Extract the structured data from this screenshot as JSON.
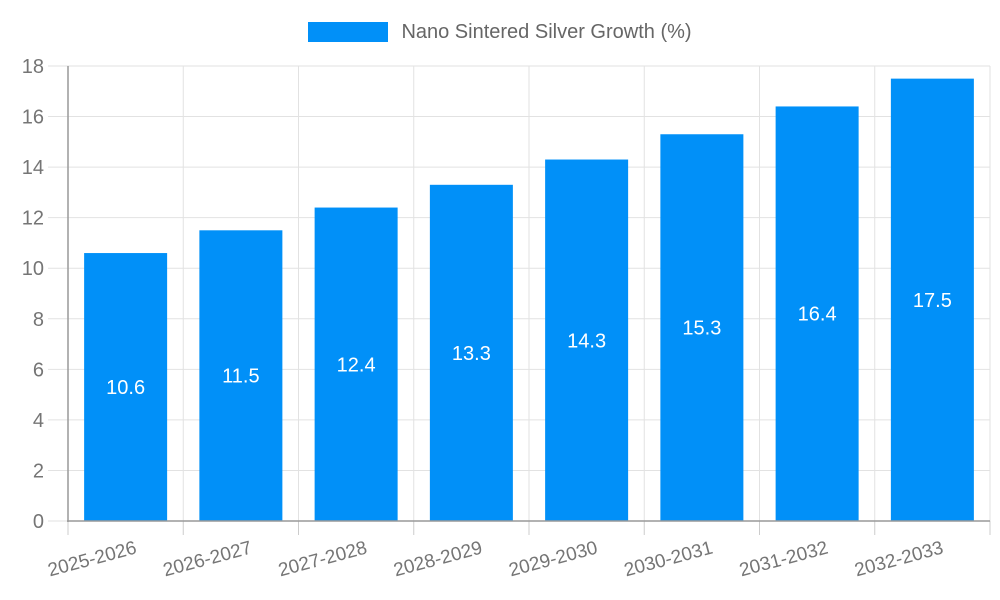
{
  "legend": {
    "label": "Nano Sintered Silver Growth (%)"
  },
  "chart_data": {
    "type": "bar",
    "categories": [
      "2025-2026",
      "2026-2027",
      "2027-2028",
      "2028-2029",
      "2029-2030",
      "2030-2031",
      "2031-2032",
      "2032-2033"
    ],
    "series": [
      {
        "name": "Nano Sintered Silver Growth (%)",
        "values": [
          10.6,
          11.5,
          12.4,
          13.3,
          14.3,
          15.3,
          16.4,
          17.5
        ]
      }
    ],
    "ylim": [
      0,
      18
    ],
    "yticks": [
      0,
      2,
      4,
      6,
      8,
      10,
      12,
      14,
      16,
      18
    ],
    "legend_position": "top-center",
    "grid": true,
    "x_tick_label_rotation_deg": -15,
    "value_label_position": "inside-center",
    "colors": {
      "bar": "#0190f8",
      "grid": "#e2e2e2",
      "axis": "#999999",
      "tick": "#cccccc",
      "axis_label": "#757575",
      "legend_text": "#666666",
      "value_label": "#ffffff",
      "background": "#ffffff"
    }
  }
}
